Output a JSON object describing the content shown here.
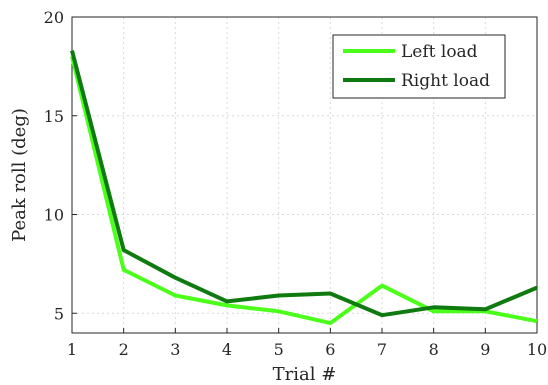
{
  "chart_data": {
    "type": "line",
    "xlabel": "Trial #",
    "ylabel": "Peak roll (deg)",
    "x": [
      1,
      2,
      3,
      4,
      5,
      6,
      7,
      8,
      9,
      10
    ],
    "xlim": [
      1,
      10
    ],
    "ylim": [
      4,
      20
    ],
    "xticks": [
      1,
      2,
      3,
      4,
      5,
      6,
      7,
      8,
      9,
      10
    ],
    "yticks": [
      5,
      10,
      15,
      20
    ],
    "grid": true,
    "legend_position": "top-right",
    "series": [
      {
        "name": "Left load",
        "color": "#4cff1a",
        "values": [
          18.0,
          7.2,
          5.9,
          5.4,
          5.1,
          4.5,
          6.4,
          5.1,
          5.1,
          4.6
        ]
      },
      {
        "name": "Right load",
        "color": "#0f7a0f",
        "values": [
          18.3,
          8.2,
          6.8,
          5.6,
          5.9,
          6.0,
          4.9,
          5.3,
          5.2,
          6.3
        ]
      }
    ]
  }
}
